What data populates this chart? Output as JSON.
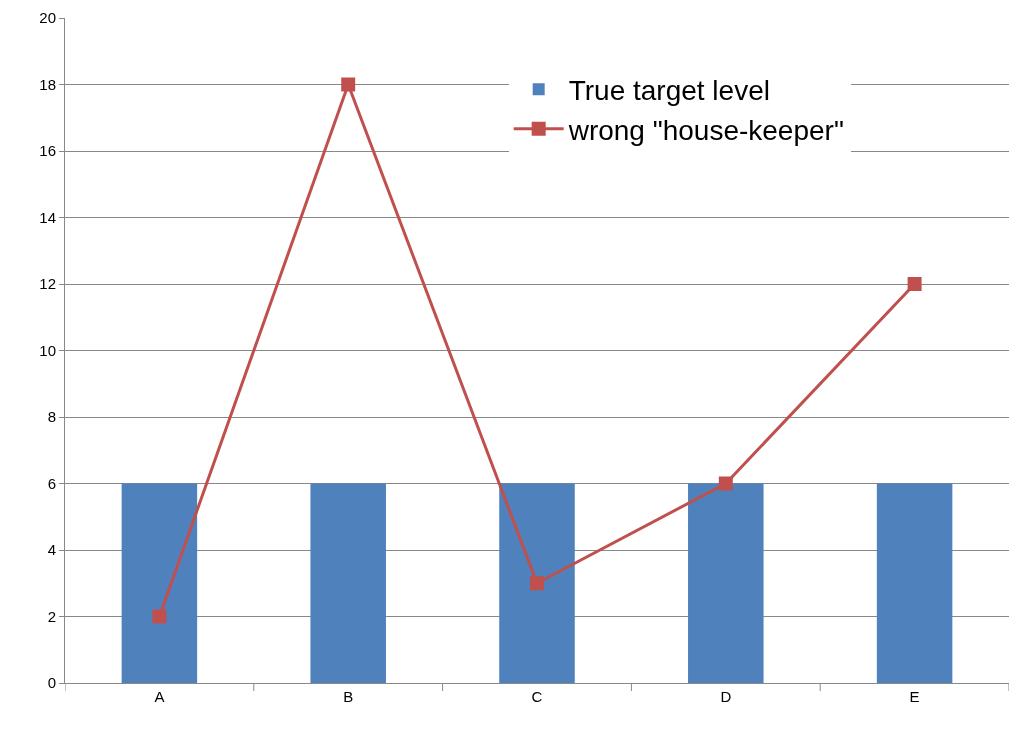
{
  "chart_data": {
    "type": "bar",
    "categories": [
      "A",
      "B",
      "C",
      "D",
      "E"
    ],
    "series": [
      {
        "name": "True target level",
        "color": "#4f81bd",
        "values": [
          6,
          6,
          6,
          6,
          6
        ]
      },
      {
        "name": "wrong \"house-keeper\"",
        "type": "line",
        "color": "#c0504d",
        "marker": "square",
        "values": [
          2,
          18,
          3,
          6,
          12
        ]
      }
    ],
    "ylim": [
      0,
      20
    ],
    "yticks": [
      0,
      2,
      4,
      6,
      8,
      10,
      12,
      14,
      16,
      18,
      20
    ],
    "grid": "y",
    "legend": "top right"
  }
}
